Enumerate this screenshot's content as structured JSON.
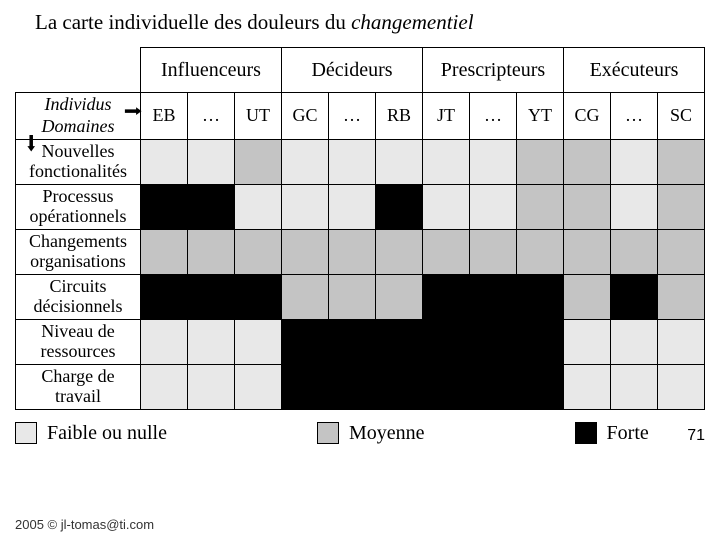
{
  "title_prefix": "La carte individuelle des douleurs du ",
  "title_ital": "changementiel",
  "colors": {
    "faible": "#e8e8e8",
    "moyenne": "#c4c4c4",
    "forte": "#000000",
    "white": "#ffffff"
  },
  "groups": [
    "Influenceurs",
    "Décideurs",
    "Prescripteurs",
    "Exécuteurs"
  ],
  "individus_label": "Individus",
  "domaines_label": "Domaines",
  "people": [
    "EB",
    "…",
    "UT",
    "GC",
    "…",
    "RB",
    "JT",
    "…",
    "YT",
    "CG",
    "…",
    "SC"
  ],
  "rows": [
    {
      "label": "Nouvelles fonctionalités",
      "cells": [
        1,
        1,
        2,
        1,
        1,
        1,
        1,
        1,
        2,
        2,
        1,
        2
      ]
    },
    {
      "label": "Processus opérationnels",
      "cells": [
        3,
        3,
        1,
        1,
        1,
        3,
        1,
        1,
        2,
        2,
        1,
        2
      ]
    },
    {
      "label": "Changements organisations",
      "cells": [
        2,
        2,
        2,
        2,
        2,
        2,
        2,
        2,
        2,
        2,
        2,
        2
      ]
    },
    {
      "label": "Circuits décisionnels",
      "cells": [
        3,
        3,
        3,
        2,
        2,
        2,
        3,
        3,
        3,
        2,
        3,
        2
      ]
    },
    {
      "label": "Niveau de ressources",
      "cells": [
        1,
        1,
        1,
        3,
        3,
        3,
        3,
        3,
        3,
        1,
        1,
        1
      ]
    },
    {
      "label": "Charge de travail",
      "cells": [
        1,
        1,
        1,
        3,
        3,
        3,
        3,
        3,
        3,
        1,
        1,
        1
      ]
    }
  ],
  "legend": [
    {
      "label": "Faible ou nulle",
      "colorClass": "c1"
    },
    {
      "label": "Moyenne",
      "colorClass": "c2"
    },
    {
      "label": "Forte",
      "colorClass": "c3"
    }
  ],
  "footer": "2005 © jl-tomas@ti.com",
  "page": "71"
}
